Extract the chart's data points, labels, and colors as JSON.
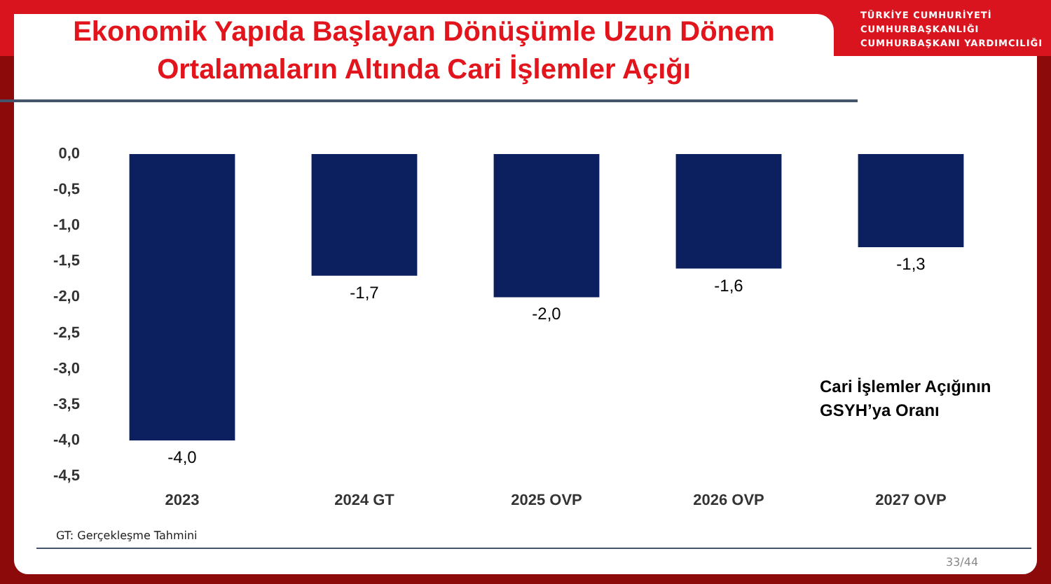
{
  "chart_data": {
    "type": "bar",
    "title": "Ekonomik Yapıda Başlayan Dönüşümle Uzun Dönem\nOrtalamaların Altında Cari İşlemler Açığı",
    "categories": [
      "2023",
      "2024 GT",
      "2025 OVP",
      "2026 OVP",
      "2027 OVP"
    ],
    "series": [
      {
        "color": "#0c1f5e",
        "values": [
          -4.0,
          -1.7,
          -2.0,
          -1.6,
          -1.3
        ],
        "value_labels": [
          "-4,0",
          "-1,7",
          "-2,0",
          "-1,6",
          "-1,3"
        ]
      }
    ],
    "ylim": [
      -4.5,
      0
    ],
    "yticks": [
      {
        "value": 0,
        "label": "0,0"
      },
      {
        "value": -0.5,
        "label": "-0,5"
      },
      {
        "value": -1,
        "label": "-1,0"
      },
      {
        "value": -1.5,
        "label": "-1,5"
      },
      {
        "value": -2,
        "label": "-2,0"
      },
      {
        "value": -2.5,
        "label": "-2,5"
      },
      {
        "value": -3,
        "label": "-3,0"
      },
      {
        "value": -3.5,
        "label": "-3,5"
      },
      {
        "value": -4,
        "label": "-4,0"
      },
      {
        "value": -4.5,
        "label": "-4,5"
      }
    ],
    "grid": false,
    "annotations": [
      "TÜRKİYE CUMHURİYETİ",
      "CUMHURBAŞKANLIĞI",
      "CUMHURBAŞKANI YARDIMCILIĞI",
      "Cari İşlemler Açığının\nGSYH’ya Oranı",
      "GT: Gerçekleşme Tahmini",
      "33/44"
    ]
  }
}
